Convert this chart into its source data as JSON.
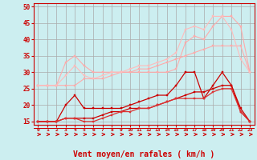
{
  "background_color": "#cceef0",
  "grid_color": "#aaaaaa",
  "xlabel": "Vent moyen/en rafales ( km/h )",
  "xlabel_color": "#cc0000",
  "xlabel_fontsize": 7,
  "tick_color": "#cc0000",
  "xlim": [
    -0.5,
    23.5
  ],
  "ylim": [
    14,
    51
  ],
  "yticks": [
    15,
    20,
    25,
    30,
    35,
    40,
    45,
    50
  ],
  "xticks": [
    0,
    1,
    2,
    3,
    4,
    5,
    6,
    7,
    8,
    9,
    10,
    11,
    12,
    13,
    14,
    15,
    16,
    17,
    18,
    19,
    20,
    21,
    22,
    23
  ],
  "series": [
    {
      "x": [
        0,
        1,
        2,
        3,
        4,
        5,
        6,
        7,
        8,
        9,
        10,
        11,
        12,
        13,
        14,
        15,
        16,
        17,
        18,
        19,
        20,
        21,
        22,
        23
      ],
      "y": [
        26,
        26,
        26,
        33,
        35,
        32,
        30,
        30,
        30,
        30,
        30,
        30,
        30,
        30,
        30,
        31,
        39,
        41,
        40,
        44,
        47,
        47,
        44,
        30
      ],
      "color": "#ffaaaa",
      "lw": 0.8,
      "marker": "s",
      "ms": 2.0
    },
    {
      "x": [
        0,
        1,
        2,
        3,
        4,
        5,
        6,
        7,
        8,
        9,
        10,
        11,
        12,
        13,
        14,
        15,
        16,
        17,
        18,
        19,
        20,
        21,
        22,
        23
      ],
      "y": [
        26,
        26,
        26,
        26,
        26,
        28,
        28,
        28,
        29,
        30,
        30,
        31,
        31,
        32,
        33,
        34,
        35,
        36,
        37,
        38,
        38,
        38,
        38,
        30
      ],
      "color": "#ffaaaa",
      "lw": 0.8,
      "marker": "s",
      "ms": 2.0
    },
    {
      "x": [
        0,
        1,
        2,
        3,
        4,
        5,
        6,
        7,
        8,
        9,
        10,
        11,
        12,
        13,
        14,
        15,
        16,
        17,
        18,
        19,
        20,
        21,
        22,
        23
      ],
      "y": [
        26,
        26,
        26,
        29,
        32,
        29,
        28,
        29,
        30,
        30,
        31,
        32,
        32,
        33,
        34,
        36,
        43,
        44,
        43,
        47,
        47,
        43,
        34,
        30
      ],
      "color": "#ffbbbb",
      "lw": 0.8,
      "marker": "s",
      "ms": 2.0
    },
    {
      "x": [
        0,
        1,
        2,
        3,
        4,
        5,
        6,
        7,
        8,
        9,
        10,
        11,
        12,
        13,
        14,
        15,
        16,
        17,
        18,
        19,
        20,
        21,
        22,
        23
      ],
      "y": [
        15,
        15,
        15,
        20,
        23,
        19,
        19,
        19,
        19,
        19,
        20,
        21,
        22,
        23,
        23,
        26,
        30,
        30,
        22,
        26,
        30,
        26,
        18,
        15
      ],
      "color": "#cc0000",
      "lw": 0.9,
      "marker": "s",
      "ms": 2.0
    },
    {
      "x": [
        0,
        1,
        2,
        3,
        4,
        5,
        6,
        7,
        8,
        9,
        10,
        11,
        12,
        13,
        14,
        15,
        16,
        17,
        18,
        19,
        20,
        21,
        22,
        23
      ],
      "y": [
        15,
        15,
        15,
        16,
        16,
        16,
        16,
        17,
        18,
        18,
        19,
        19,
        19,
        20,
        21,
        22,
        23,
        24,
        24,
        25,
        26,
        26,
        19,
        15
      ],
      "color": "#cc0000",
      "lw": 0.9,
      "marker": "s",
      "ms": 2.0
    },
    {
      "x": [
        0,
        1,
        2,
        3,
        4,
        5,
        6,
        7,
        8,
        9,
        10,
        11,
        12,
        13,
        14,
        15,
        16,
        17,
        18,
        19,
        20,
        21,
        22,
        23
      ],
      "y": [
        15,
        15,
        15,
        16,
        16,
        15,
        15,
        16,
        17,
        18,
        18,
        19,
        19,
        20,
        21,
        22,
        22,
        22,
        22,
        24,
        25,
        25,
        18,
        15
      ],
      "color": "#dd3333",
      "lw": 0.9,
      "marker": "s",
      "ms": 2.0
    }
  ],
  "arrow_y_text": "→",
  "arrow_angles": [
    45,
    45,
    45,
    60,
    60,
    60,
    50,
    40,
    30,
    20,
    10,
    5,
    5,
    0,
    0,
    0,
    0,
    0,
    0,
    0,
    0,
    0,
    0,
    0
  ]
}
